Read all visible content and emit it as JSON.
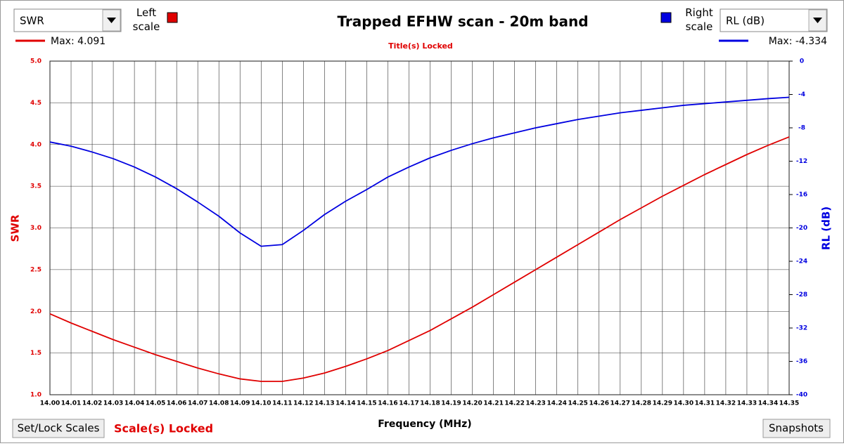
{
  "ui": {
    "left_select": "SWR",
    "left_scale_label": "Left scale",
    "right_scale_label": "Right scale",
    "right_select": "RL (dB)",
    "titles_locked": "Title(s) Locked",
    "set_lock_button": "Set/Lock Scales",
    "scales_locked": "Scale(s) Locked",
    "snapshots_button": "Snapshots"
  },
  "chart_data": {
    "type": "line",
    "title": "Trapped EFHW scan - 20m band",
    "xlabel": "Frequency (MHz)",
    "ylabel": "SWR",
    "y2label": "RL (dB)",
    "x": [
      14.0,
      14.01,
      14.02,
      14.03,
      14.04,
      14.05,
      14.06,
      14.07,
      14.08,
      14.09,
      14.1,
      14.11,
      14.12,
      14.13,
      14.14,
      14.15,
      14.16,
      14.17,
      14.18,
      14.19,
      14.2,
      14.21,
      14.22,
      14.23,
      14.24,
      14.25,
      14.26,
      14.27,
      14.28,
      14.29,
      14.3,
      14.31,
      14.32,
      14.33,
      14.34,
      14.35
    ],
    "series": [
      {
        "name": "Max: 4.091",
        "color": "#e00000",
        "axis": "y",
        "values": [
          1.97,
          1.86,
          1.76,
          1.66,
          1.57,
          1.48,
          1.4,
          1.32,
          1.25,
          1.19,
          1.16,
          1.16,
          1.2,
          1.26,
          1.34,
          1.43,
          1.53,
          1.65,
          1.77,
          1.91,
          2.05,
          2.2,
          2.35,
          2.5,
          2.65,
          2.8,
          2.95,
          3.1,
          3.24,
          3.38,
          3.51,
          3.64,
          3.76,
          3.88,
          3.99,
          4.091
        ]
      },
      {
        "name": "Max: -4.334",
        "color": "#0000e0",
        "axis": "y2",
        "values": [
          -9.7,
          -10.2,
          -10.9,
          -11.7,
          -12.7,
          -13.9,
          -15.3,
          -16.9,
          -18.6,
          -20.6,
          -22.2,
          -22.0,
          -20.3,
          -18.4,
          -16.8,
          -15.4,
          -13.9,
          -12.7,
          -11.6,
          -10.7,
          -9.9,
          -9.2,
          -8.6,
          -8.0,
          -7.5,
          -7.0,
          -6.6,
          -6.2,
          -5.9,
          -5.6,
          -5.3,
          -5.1,
          -4.9,
          -4.7,
          -4.5,
          -4.334
        ]
      }
    ],
    "xlim": [
      14.0,
      14.35
    ],
    "xticks": [
      {
        "value": 14.0,
        "label": "14.00"
      },
      14.01,
      14.02,
      14.03,
      14.04,
      14.05,
      14.06,
      14.07,
      14.08,
      14.09,
      {
        "value": 14.1,
        "label": "14.10"
      },
      14.11,
      14.12,
      14.13,
      14.14,
      14.15,
      14.16,
      14.17,
      14.18,
      14.19,
      {
        "value": 14.2,
        "label": "14.20"
      },
      14.21,
      14.22,
      14.23,
      14.24,
      14.25,
      14.26,
      14.27,
      14.28,
      14.29,
      {
        "value": 14.3,
        "label": "14.30"
      },
      14.31,
      14.32,
      14.33,
      14.34,
      14.35
    ],
    "ylim": [
      1.0,
      5.0
    ],
    "yticks": [
      {
        "value": 1.0,
        "label": "1.0"
      },
      1.5,
      {
        "value": 2.0,
        "label": "2.0"
      },
      2.5,
      {
        "value": 3.0,
        "label": "3.0"
      },
      3.5,
      {
        "value": 4.0,
        "label": "4.0"
      },
      4.5,
      {
        "value": 5.0,
        "label": "5.0"
      }
    ],
    "y2lim": [
      -40,
      0
    ],
    "y2ticks": [
      -40,
      -36,
      -32,
      -28,
      -24,
      -20,
      -16,
      -12,
      -8,
      -4,
      0
    ],
    "grid": true
  }
}
